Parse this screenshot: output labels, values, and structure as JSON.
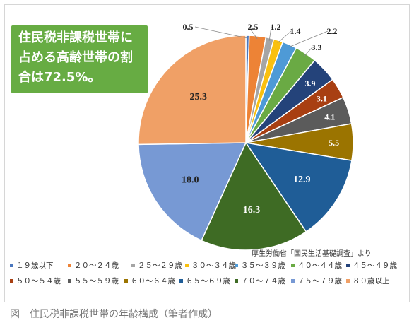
{
  "callout": {
    "lines": [
      "住民税非課税世帯に",
      "占める高齢世帯の割",
      "合は72.5%。"
    ]
  },
  "source": "厚生労働省「国民生活基礎調査」より",
  "caption": "図　住民税非課税世帯の年齢構成（筆者作成）",
  "chart_data": {
    "type": "pie",
    "title": "",
    "start_angle_deg": 0,
    "direction": "clockwise",
    "legend_position": "bottom",
    "series": [
      {
        "name": "１９歳以下",
        "value": 0.5,
        "label": "0.5",
        "color": "#4a77be"
      },
      {
        "name": "２０～２４歳",
        "value": 2.5,
        "label": "2.5",
        "color": "#ed8336"
      },
      {
        "name": "２５～２９歳",
        "value": 1.2,
        "label": "1.2",
        "color": "#a5a5a5"
      },
      {
        "name": "３０～３４歳",
        "value": 1.4,
        "label": "1.4",
        "color": "#f9c010"
      },
      {
        "name": "３５～３９歳",
        "value": 2.2,
        "label": "2.2",
        "color": "#4e9ad6"
      },
      {
        "name": "４０～４４歳",
        "value": 3.3,
        "label": "3.3",
        "color": "#6aaa44"
      },
      {
        "name": "４５～４９歳",
        "value": 3.9,
        "label": "3.9",
        "color": "#24437a"
      },
      {
        "name": "５０～５４歳",
        "value": 3.1,
        "label": "3.1",
        "color": "#a83f12"
      },
      {
        "name": "５５～５９歳",
        "value": 4.1,
        "label": "4.1",
        "color": "#5b5b5b"
      },
      {
        "name": "６０～６４歳",
        "value": 5.5,
        "label": "5.5",
        "color": "#9b7400"
      },
      {
        "name": "６５～６９歳",
        "value": 12.9,
        "label": "12.9",
        "color": "#1f5d97"
      },
      {
        "name": "７０～７４歳",
        "value": 16.3,
        "label": "16.3",
        "color": "#3e6b24"
      },
      {
        "name": "７５～７９歳",
        "value": 18.0,
        "label": "18.0",
        "color": "#7799d4"
      },
      {
        "name": "８０歳以上",
        "value": 25.3,
        "label": "25.3",
        "color": "#f0a066"
      }
    ]
  }
}
